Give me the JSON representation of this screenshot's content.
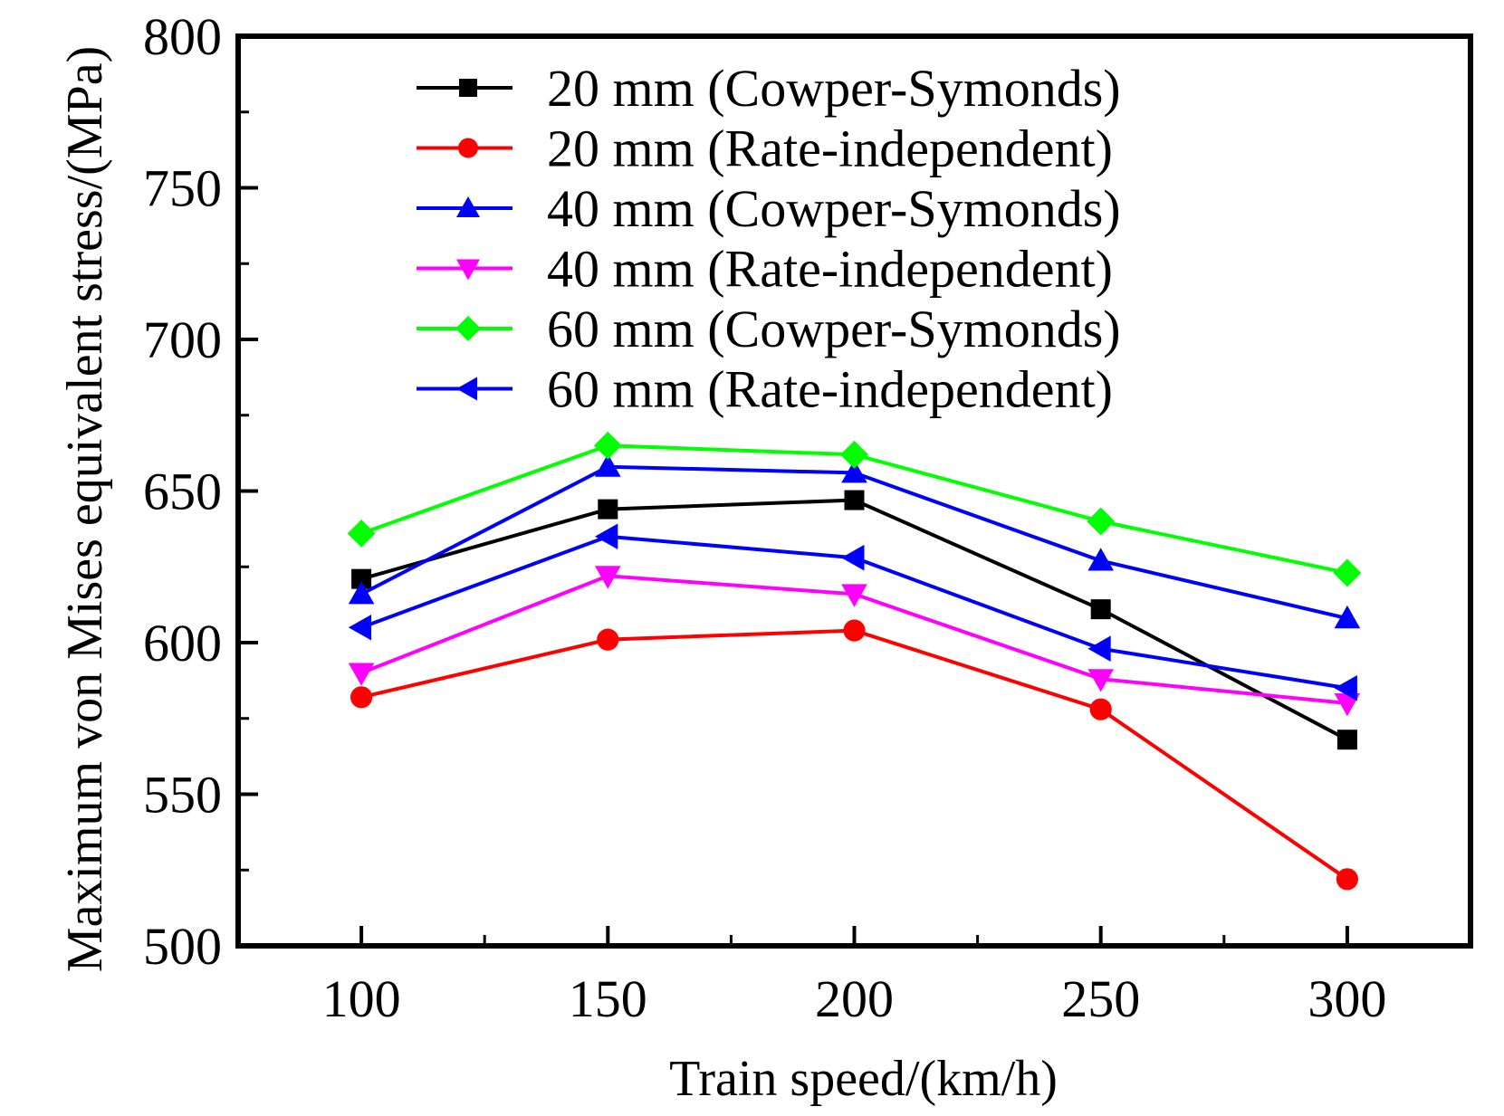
{
  "chart_data": {
    "type": "line",
    "title": "",
    "xlabel": "Train speed/(km/h)",
    "ylabel": "Maximum von Mises equivalent stress/(MPa)",
    "xlim": [
      75,
      325
    ],
    "ylim": [
      500,
      800
    ],
    "x": [
      100,
      150,
      200,
      250,
      300
    ],
    "x_ticks": [
      100,
      150,
      200,
      250,
      300
    ],
    "x_minor_ticks": [
      125,
      175,
      225,
      275
    ],
    "y_ticks": [
      500,
      550,
      600,
      650,
      700,
      750,
      800
    ],
    "y_minor_ticks": [
      525,
      575,
      625,
      675,
      725,
      775
    ],
    "grid": false,
    "legend_position": "top-center",
    "series": [
      {
        "name": "20 mm (Cowper-Symonds)",
        "color": "#000000",
        "marker": "square",
        "values": [
          621,
          644,
          647,
          611,
          568
        ]
      },
      {
        "name": "20 mm (Rate-independent)",
        "color": "#ff0000",
        "marker": "circle",
        "values": [
          582,
          601,
          604,
          578,
          522
        ]
      },
      {
        "name": "40 mm (Cowper-Symonds)",
        "color": "#0000ff",
        "marker": "triangle-up",
        "values": [
          616,
          658,
          656,
          627,
          608
        ]
      },
      {
        "name": "40 mm (Rate-independent)",
        "color": "#ff00ff",
        "marker": "triangle-down",
        "values": [
          590,
          622,
          616,
          588,
          580
        ]
      },
      {
        "name": "60 mm (Cowper-Symonds)",
        "color": "#00ff00",
        "marker": "diamond",
        "values": [
          636,
          665,
          662,
          640,
          623
        ]
      },
      {
        "name": "60 mm (Rate-independent)",
        "color": "#0000ff",
        "marker": "triangle-left",
        "values": [
          605,
          635,
          628,
          598,
          585
        ]
      }
    ]
  }
}
